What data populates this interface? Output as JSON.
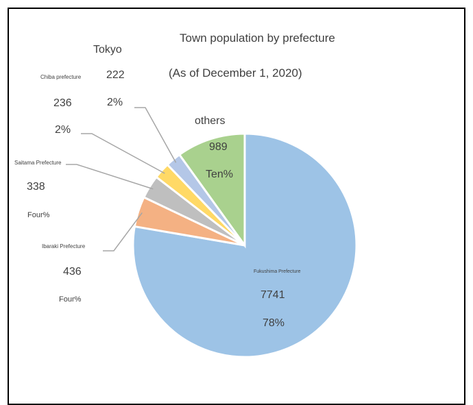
{
  "chart_data": {
    "type": "pie",
    "title": "Town population by prefecture",
    "subtitle": "(As of December 1, 2020)",
    "slices": [
      {
        "label": "Fukushima Prefecture",
        "value": 7741,
        "percent": "78%",
        "color": "#9dc3e6"
      },
      {
        "label": "Ibaraki Prefecture",
        "value": 436,
        "percent": "Four%",
        "color": "#f4b183"
      },
      {
        "label": "Saitama Prefecture",
        "value": 338,
        "percent": "Four%",
        "color": "#bfbfbf"
      },
      {
        "label": "Chiba prefecture",
        "value": 236,
        "percent": "2%",
        "color": "#ffd966"
      },
      {
        "label": "Tokyo",
        "value": 222,
        "percent": "2%",
        "color": "#b4c7e7"
      },
      {
        "label": "others",
        "value": 989,
        "percent": "Ten%",
        "color": "#a9d18e"
      }
    ]
  }
}
